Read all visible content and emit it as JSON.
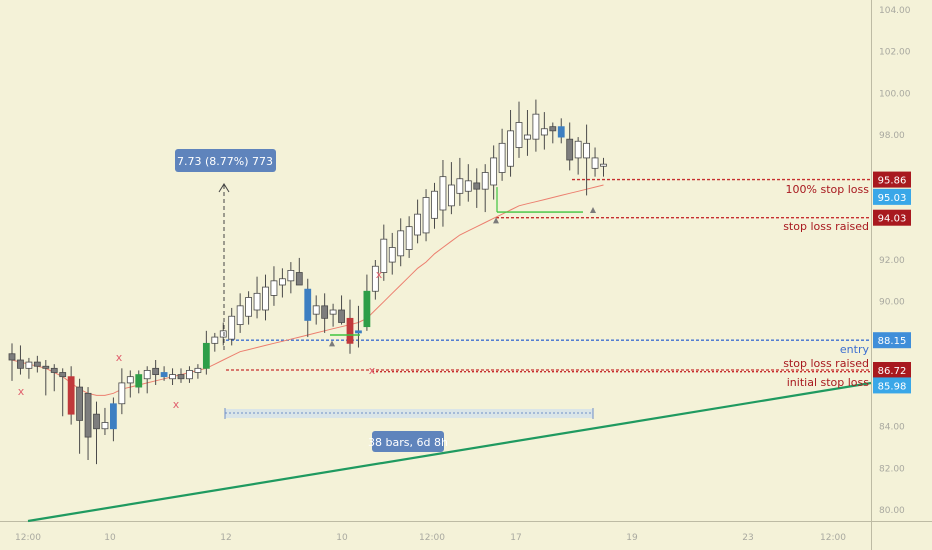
{
  "chart_data": {
    "type": "candlestick",
    "colors": {
      "background": "#f4f2d8",
      "candle_up": "#ffffff",
      "candle_down": "#7d7d7d",
      "candle_edge": "#4a4a4a",
      "highlight_green": "#2e9e48",
      "highlight_red": "#c0393b",
      "highlight_blue": "#3d7fc2",
      "ma": "#ec7f6f",
      "trendline": "#1f9a60",
      "stop_line": "#c62f2f",
      "entry_line": "#3d6fd1",
      "marker_x": "#e0606d"
    },
    "y_axis": {
      "ylim": [
        79.3,
        105.0
      ],
      "ticks": [
        "104.00",
        "102.00",
        "100.00",
        "98.00",
        "96.00",
        "94.00",
        "92.00",
        "90.00",
        "88.00",
        "86.00",
        "84.00",
        "82.00",
        "80.00"
      ]
    },
    "x_axis": {
      "labels": [
        "12:00",
        "10",
        "12",
        "10",
        "12:00",
        "17",
        "19",
        "23",
        "12:00"
      ]
    },
    "candles": [
      {
        "o": 87.5,
        "h": 88.0,
        "l": 86.2,
        "c": 87.2,
        "k": "down"
      },
      {
        "o": 87.2,
        "h": 87.9,
        "l": 86.5,
        "c": 86.8,
        "k": "down"
      },
      {
        "o": 86.8,
        "h": 87.3,
        "l": 86.3,
        "c": 87.1,
        "k": "up"
      },
      {
        "o": 87.1,
        "h": 87.4,
        "l": 86.6,
        "c": 86.9,
        "k": "down"
      },
      {
        "o": 86.9,
        "h": 87.2,
        "l": 85.5,
        "c": 86.8,
        "k": "down"
      },
      {
        "o": 86.8,
        "h": 87.0,
        "l": 85.7,
        "c": 86.6,
        "k": "down"
      },
      {
        "o": 86.6,
        "h": 86.8,
        "l": 84.5,
        "c": 86.4,
        "k": "down"
      },
      {
        "o": 86.4,
        "h": 86.9,
        "l": 84.1,
        "c": 84.6,
        "k": "red"
      },
      {
        "o": 85.9,
        "h": 86.3,
        "l": 82.7,
        "c": 84.3,
        "k": "down"
      },
      {
        "o": 85.6,
        "h": 85.9,
        "l": 82.4,
        "c": 83.5,
        "k": "down"
      },
      {
        "o": 84.6,
        "h": 85.2,
        "l": 82.2,
        "c": 83.9,
        "k": "down"
      },
      {
        "o": 83.9,
        "h": 84.9,
        "l": 83.6,
        "c": 84.2,
        "k": "up"
      },
      {
        "o": 83.9,
        "h": 85.4,
        "l": 83.3,
        "c": 85.1,
        "k": "blue"
      },
      {
        "o": 85.1,
        "h": 86.8,
        "l": 84.6,
        "c": 86.1,
        "k": "up"
      },
      {
        "o": 86.1,
        "h": 86.7,
        "l": 85.4,
        "c": 86.4,
        "k": "up"
      },
      {
        "o": 85.9,
        "h": 86.7,
        "l": 85.6,
        "c": 86.5,
        "k": "green"
      },
      {
        "o": 86.3,
        "h": 86.9,
        "l": 85.6,
        "c": 86.7,
        "k": "up"
      },
      {
        "o": 86.8,
        "h": 87.2,
        "l": 86.0,
        "c": 86.5,
        "k": "down"
      },
      {
        "o": 86.6,
        "h": 86.9,
        "l": 86.2,
        "c": 86.4,
        "k": "blue"
      },
      {
        "o": 86.3,
        "h": 86.8,
        "l": 86.0,
        "c": 86.5,
        "k": "up"
      },
      {
        "o": 86.5,
        "h": 86.8,
        "l": 86.1,
        "c": 86.3,
        "k": "down"
      },
      {
        "o": 86.3,
        "h": 86.9,
        "l": 86.1,
        "c": 86.7,
        "k": "up"
      },
      {
        "o": 86.6,
        "h": 87.0,
        "l": 86.3,
        "c": 86.8,
        "k": "up"
      },
      {
        "o": 86.8,
        "h": 88.6,
        "l": 86.5,
        "c": 88.0,
        "k": "green"
      },
      {
        "o": 88.0,
        "h": 88.5,
        "l": 87.6,
        "c": 88.3,
        "k": "up"
      },
      {
        "o": 88.3,
        "h": 89.0,
        "l": 87.9,
        "c": 88.6,
        "k": "up"
      },
      {
        "o": 88.2,
        "h": 89.7,
        "l": 87.9,
        "c": 89.3,
        "k": "up"
      },
      {
        "o": 88.9,
        "h": 90.4,
        "l": 88.5,
        "c": 89.8,
        "k": "up"
      },
      {
        "o": 89.3,
        "h": 90.5,
        "l": 88.9,
        "c": 90.2,
        "k": "up"
      },
      {
        "o": 89.6,
        "h": 91.2,
        "l": 89.2,
        "c": 90.4,
        "k": "up"
      },
      {
        "o": 89.6,
        "h": 91.3,
        "l": 89.1,
        "c": 90.7,
        "k": "up"
      },
      {
        "o": 90.3,
        "h": 91.7,
        "l": 89.8,
        "c": 91.0,
        "k": "up"
      },
      {
        "o": 90.8,
        "h": 91.6,
        "l": 90.2,
        "c": 91.1,
        "k": "up"
      },
      {
        "o": 91.0,
        "h": 91.9,
        "l": 90.4,
        "c": 91.5,
        "k": "up"
      },
      {
        "o": 91.4,
        "h": 92.1,
        "l": 90.9,
        "c": 90.8,
        "k": "down"
      },
      {
        "o": 90.6,
        "h": 91.1,
        "l": 88.3,
        "c": 89.1,
        "k": "blue"
      },
      {
        "o": 89.4,
        "h": 90.3,
        "l": 88.9,
        "c": 89.8,
        "k": "up"
      },
      {
        "o": 89.8,
        "h": 90.4,
        "l": 88.5,
        "c": 89.2,
        "k": "down"
      },
      {
        "o": 89.4,
        "h": 89.9,
        "l": 88.8,
        "c": 89.6,
        "k": "up"
      },
      {
        "o": 89.6,
        "h": 90.3,
        "l": 88.9,
        "c": 89.0,
        "k": "down"
      },
      {
        "o": 89.2,
        "h": 90.1,
        "l": 87.5,
        "c": 88.0,
        "k": "red"
      },
      {
        "o": 88.5,
        "h": 89.8,
        "l": 87.8,
        "c": 88.6,
        "k": "blue"
      },
      {
        "o": 88.8,
        "h": 91.3,
        "l": 88.6,
        "c": 90.5,
        "k": "green"
      },
      {
        "o": 90.5,
        "h": 92.0,
        "l": 90.1,
        "c": 91.7,
        "k": "up"
      },
      {
        "o": 91.4,
        "h": 93.7,
        "l": 91.0,
        "c": 93.0,
        "k": "up"
      },
      {
        "o": 91.9,
        "h": 93.3,
        "l": 91.3,
        "c": 92.6,
        "k": "up"
      },
      {
        "o": 92.2,
        "h": 94.0,
        "l": 91.7,
        "c": 93.4,
        "k": "up"
      },
      {
        "o": 92.5,
        "h": 94.1,
        "l": 92.1,
        "c": 93.6,
        "k": "up"
      },
      {
        "o": 93.2,
        "h": 94.9,
        "l": 92.8,
        "c": 94.2,
        "k": "up"
      },
      {
        "o": 93.3,
        "h": 95.4,
        "l": 92.9,
        "c": 95.0,
        "k": "up"
      },
      {
        "o": 94.0,
        "h": 95.7,
        "l": 93.5,
        "c": 95.3,
        "k": "up"
      },
      {
        "o": 94.4,
        "h": 96.8,
        "l": 93.6,
        "c": 96.0,
        "k": "up"
      },
      {
        "o": 94.6,
        "h": 96.7,
        "l": 94.2,
        "c": 95.6,
        "k": "up"
      },
      {
        "o": 95.2,
        "h": 96.9,
        "l": 94.6,
        "c": 95.9,
        "k": "up"
      },
      {
        "o": 95.3,
        "h": 96.6,
        "l": 94.8,
        "c": 95.8,
        "k": "up"
      },
      {
        "o": 95.4,
        "h": 96.4,
        "l": 94.5,
        "c": 95.7,
        "k": "down"
      },
      {
        "o": 95.4,
        "h": 96.6,
        "l": 94.3,
        "c": 96.2,
        "k": "up"
      },
      {
        "o": 95.6,
        "h": 97.5,
        "l": 94.9,
        "c": 96.9,
        "k": "up"
      },
      {
        "o": 96.2,
        "h": 98.3,
        "l": 95.8,
        "c": 97.6,
        "k": "up"
      },
      {
        "o": 96.5,
        "h": 99.2,
        "l": 96.0,
        "c": 98.2,
        "k": "up"
      },
      {
        "o": 97.4,
        "h": 99.6,
        "l": 96.9,
        "c": 98.6,
        "k": "up"
      },
      {
        "o": 97.8,
        "h": 99.2,
        "l": 97.0,
        "c": 98.0,
        "k": "up"
      },
      {
        "o": 97.8,
        "h": 99.7,
        "l": 97.2,
        "c": 99.0,
        "k": "up"
      },
      {
        "o": 98.0,
        "h": 99.1,
        "l": 97.3,
        "c": 98.3,
        "k": "up"
      },
      {
        "o": 98.2,
        "h": 98.6,
        "l": 97.6,
        "c": 98.4,
        "k": "down"
      },
      {
        "o": 98.4,
        "h": 98.8,
        "l": 97.6,
        "c": 97.9,
        "k": "blue"
      },
      {
        "o": 97.8,
        "h": 98.6,
        "l": 96.3,
        "c": 96.8,
        "k": "down"
      },
      {
        "o": 96.9,
        "h": 97.9,
        "l": 96.1,
        "c": 97.7,
        "k": "up"
      },
      {
        "o": 97.6,
        "h": 98.5,
        "l": 95.1,
        "c": 96.9,
        "k": "up"
      },
      {
        "o": 96.9,
        "h": 97.4,
        "l": 96.0,
        "c": 96.4,
        "k": "up"
      },
      {
        "o": 96.5,
        "h": 96.9,
        "l": 96.0,
        "c": 96.6,
        "k": "up"
      }
    ],
    "moving_average": [
      87.2,
      87.1,
      87.0,
      86.9,
      86.8,
      86.6,
      86.4,
      86.1,
      85.8,
      85.6,
      85.5,
      85.5,
      85.6,
      85.8,
      85.9,
      86.0,
      86.1,
      86.2,
      86.3,
      86.4,
      86.5,
      86.6,
      86.7,
      86.8,
      87.0,
      87.2,
      87.4,
      87.6,
      87.7,
      87.8,
      87.9,
      88.0,
      88.1,
      88.2,
      88.3,
      88.4,
      88.5,
      88.6,
      88.7,
      88.8,
      88.9,
      89.0,
      89.2,
      89.6,
      90.0,
      90.4,
      90.8,
      91.2,
      91.6,
      91.9,
      92.3,
      92.6,
      92.9,
      93.2,
      93.4,
      93.6,
      93.8,
      94.0,
      94.2,
      94.4,
      94.6,
      94.7,
      94.8,
      94.9,
      95.0,
      95.1,
      95.2,
      95.3,
      95.4,
      95.5,
      95.6
    ],
    "horizontal_levels": [
      {
        "price": 95.86,
        "style": "dotted",
        "color": "#c62f2f",
        "text": "100% stop loss",
        "badge": "95.86",
        "badge_color": "#a8191f"
      },
      {
        "price": 94.03,
        "style": "dotted",
        "color": "#c62f2f",
        "text": "stop loss raised",
        "badge": "94.03",
        "badge_color": "#a8191f"
      },
      {
        "price": 88.15,
        "style": "dotted",
        "color": "#3d6fd1",
        "text": "entry",
        "badge": "88.15",
        "badge_color": "#3f8ed9"
      },
      {
        "price": 86.72,
        "style": "dotted",
        "color": "#c62f2f",
        "text": "stop loss raised",
        "badge": "86.72",
        "badge_color": "#a8191f"
      }
    ],
    "extra_badges": [
      {
        "price": 95.03,
        "badge": "95.03",
        "badge_color": "#39a7e8"
      },
      {
        "price": 85.98,
        "badge": "85.98",
        "badge_color": "#39a7e8",
        "text": "initial stop loss"
      }
    ],
    "annotations": {
      "price_range_label": "7.73 (8.77%) 773",
      "date_range_label": "38 bars, 6d 8h"
    }
  }
}
